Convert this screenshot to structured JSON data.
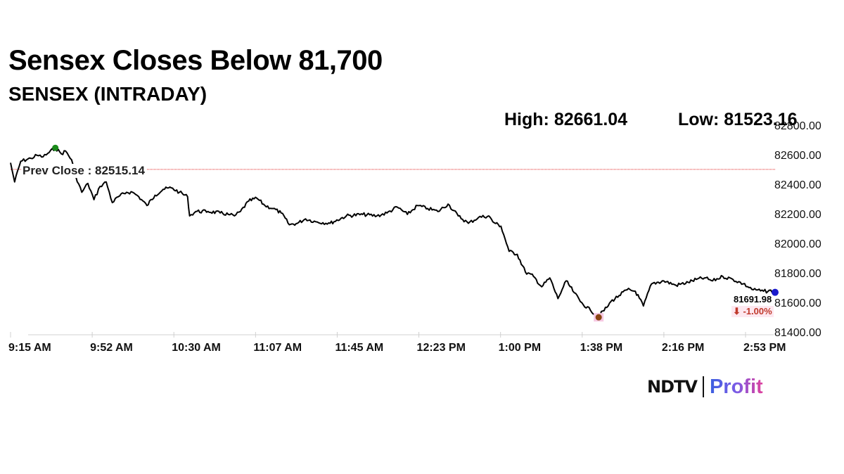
{
  "header": {
    "title": "Sensex Closes Below 81,700",
    "subtitle": "SENSEX (INTRADAY)",
    "high_label": "High: 82661.04",
    "low_label": "Low: 81523.16"
  },
  "prev_close_label": "Prev Close : 82515.14",
  "last": {
    "value": "81691.98",
    "change": "⬇ -1.00%"
  },
  "logo": {
    "brand": "NDTV",
    "product": "Profit"
  },
  "colors": {
    "line": "#000000",
    "prev_close": "#e02020",
    "high_marker": "#1a8a1a",
    "low_marker": "#8b4513",
    "last_marker": "#1a1acc",
    "change_text": "#c0392b"
  },
  "chart_data": {
    "type": "line",
    "title": "SENSEX (INTRADAY)",
    "xlabel": "",
    "ylabel": "",
    "x_tick_labels": [
      "9:15 AM",
      "9:52 AM",
      "10:30 AM",
      "11:07 AM",
      "11:45 AM",
      "12:23 PM",
      "1:00 PM",
      "1:38 PM",
      "2:16 PM",
      "2:53 PM"
    ],
    "y_tick_labels": [
      "82800.00",
      "82600.00",
      "82400.00",
      "82200.00",
      "82000.00",
      "81800.00",
      "81600.00",
      "81400.00"
    ],
    "ylim": [
      81400,
      82800
    ],
    "grid": false,
    "prev_close": 82515.14,
    "high": 82661.04,
    "low": 81523.16,
    "close": 81691.98,
    "change_pct": -1.0,
    "series": [
      {
        "name": "SENSEX",
        "x": [
          "9:15",
          "9:17",
          "9:20",
          "9:25",
          "9:28",
          "9:31",
          "9:34",
          "9:37",
          "9:40",
          "9:42",
          "9:45",
          "9:47",
          "9:50",
          "9:53",
          "9:56",
          "9:59",
          "10:02",
          "10:05",
          "10:08",
          "10:12",
          "10:15",
          "10:18",
          "10:22",
          "10:26",
          "10:30",
          "10:34",
          "10:38",
          "10:42",
          "10:43",
          "10:46",
          "10:52",
          "10:58",
          "11:02",
          "11:05",
          "11:08",
          "11:12",
          "11:16",
          "11:20",
          "11:24",
          "11:28",
          "11:32",
          "11:36",
          "11:40",
          "11:45",
          "11:52",
          "12:00",
          "12:08",
          "12:15",
          "12:20",
          "12:25",
          "12:30",
          "12:35",
          "12:40",
          "12:45",
          "12:50",
          "12:55",
          "13:00",
          "13:05",
          "13:10",
          "13:12",
          "13:16",
          "13:20",
          "13:24",
          "13:28",
          "13:32",
          "13:36",
          "13:40",
          "13:44",
          "13:46",
          "13:48",
          "13:52",
          "13:55",
          "14:00",
          "14:04",
          "14:08",
          "14:10",
          "14:14",
          "14:18",
          "14:22",
          "14:26",
          "14:30",
          "14:36",
          "14:42",
          "14:48",
          "14:52",
          "14:56",
          "15:00",
          "15:05",
          "15:10",
          "15:15",
          "15:20",
          "15:25",
          "15:30"
        ],
        "values": [
          82560,
          82430,
          82570,
          82590,
          82610,
          82600,
          82630,
          82661,
          82620,
          82640,
          82580,
          82470,
          82360,
          82420,
          82310,
          82400,
          82430,
          82290,
          82330,
          82360,
          82360,
          82330,
          82270,
          82340,
          82380,
          82390,
          82360,
          82330,
          82200,
          82230,
          82230,
          82220,
          82210,
          82200,
          82230,
          82300,
          82320,
          82270,
          82250,
          82220,
          82140,
          82150,
          82180,
          82160,
          82150,
          82200,
          82210,
          82200,
          82220,
          82260,
          82210,
          82270,
          82250,
          82230,
          82280,
          82200,
          82150,
          82190,
          82200,
          82160,
          82130,
          81960,
          81940,
          81820,
          81790,
          81720,
          81780,
          81640,
          81700,
          81760,
          81680,
          81620,
          81560,
          81523,
          81580,
          81620,
          81660,
          81700,
          81690,
          81590,
          81740,
          81760,
          81730,
          81750,
          81770,
          81780,
          81760,
          81790,
          81770,
          81740,
          81700,
          81690,
          81692
        ]
      }
    ]
  }
}
